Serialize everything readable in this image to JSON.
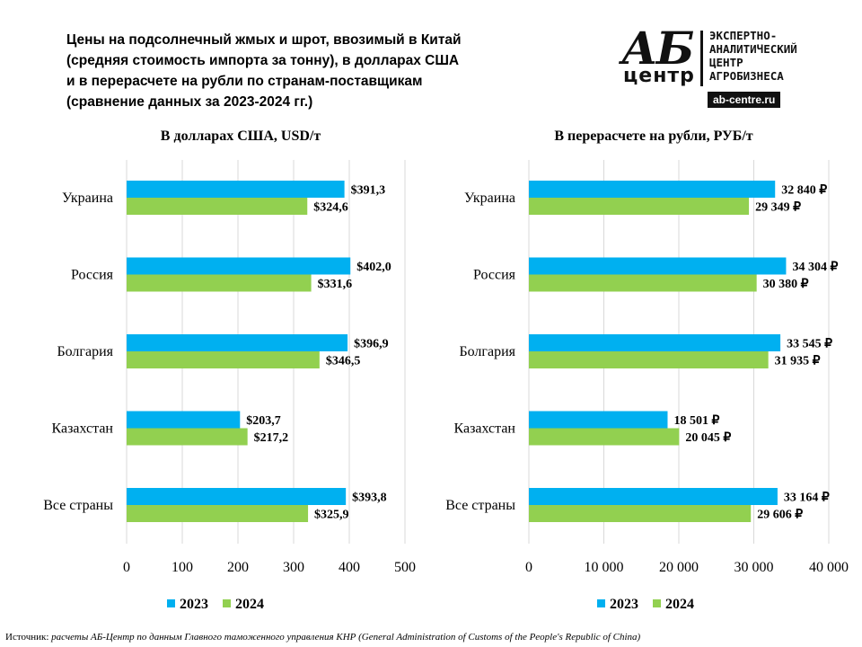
{
  "title_lines": [
    "Цены на подсолнечный жмых и шрот, ввозимый в Китай",
    "(средняя стоимость импорта за тонну), в долларах США",
    "и в перерасчете на рубли по странам-поставщикам",
    "(сравнение данных за 2023-2024 гг.)"
  ],
  "logo": {
    "mark_top": "АБ",
    "mark_bottom": "центр",
    "desc_lines": [
      "ЭКСПЕРТНО-",
      "АНАЛИТИЧЕСКИЙ",
      "ЦЕНТР",
      "АГРОБИЗНЕСА"
    ],
    "url": "ab-centre.ru"
  },
  "source": {
    "label": "Источник:",
    "text": " расчеты АБ-Центр по данным Главного таможенного управления КНР (General Administration of Customs of the People's Republic of China)"
  },
  "colors": {
    "2023": "#00B0F0",
    "2024": "#92D050",
    "grid": "#D9D9D9"
  },
  "chart_data": [
    {
      "type": "bar",
      "orientation": "horizontal",
      "title": "В долларах США, USD/т",
      "categories": [
        "Украина",
        "Россия",
        "Болгария",
        "Казахстан",
        "Все страны"
      ],
      "series": [
        {
          "name": "2023",
          "values": [
            391.3,
            402.0,
            396.9,
            203.7,
            393.8
          ],
          "labels": [
            "$391,3",
            "$402,0",
            "$396,9",
            "$203,7",
            "$393,8"
          ]
        },
        {
          "name": "2024",
          "values": [
            324.6,
            331.6,
            346.5,
            217.2,
            325.9
          ],
          "labels": [
            "$324,6",
            "$331,6",
            "$346,5",
            "$217,2",
            "$325,9"
          ]
        }
      ],
      "xlim": [
        0,
        500
      ],
      "xticks": [
        0,
        100,
        200,
        300,
        400,
        500
      ],
      "xtick_labels": [
        "0",
        "100",
        "200",
        "300",
        "400",
        "500"
      ],
      "grid": true,
      "legend": "bottom"
    },
    {
      "type": "bar",
      "orientation": "horizontal",
      "title": "В перерасчете на рубли, РУБ/т",
      "categories": [
        "Украина",
        "Россия",
        "Болгария",
        "Казахстан",
        "Все страны"
      ],
      "series": [
        {
          "name": "2023",
          "values": [
            32840,
            34304,
            33545,
            18501,
            33164
          ],
          "labels": [
            "32 840 ₽",
            "34 304 ₽",
            "33 545 ₽",
            "18 501 ₽",
            "33 164 ₽"
          ]
        },
        {
          "name": "2024",
          "values": [
            29349,
            30380,
            31935,
            20045,
            29606
          ],
          "labels": [
            "29 349 ₽",
            "30 380 ₽",
            "31 935 ₽",
            "20 045 ₽",
            "29 606 ₽"
          ]
        }
      ],
      "xlim": [
        0,
        40000
      ],
      "xticks": [
        0,
        10000,
        20000,
        30000,
        40000
      ],
      "xtick_labels": [
        "0",
        "10 000",
        "20 000",
        "30 000",
        "40 000"
      ],
      "grid": true,
      "legend": "bottom"
    }
  ]
}
